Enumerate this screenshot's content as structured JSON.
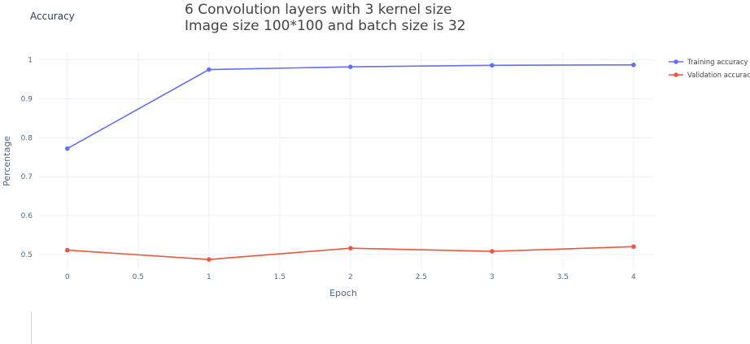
{
  "panel": {
    "corner_title": "Accuracy"
  },
  "chart_data": {
    "type": "line",
    "title_lines": [
      "6 Convolution layers with 3 kernel size",
      "Image size 100*100  and batch size is 32"
    ],
    "xlabel": "Epoch",
    "ylabel": "Percentage",
    "xlim": [
      -0.2,
      4.15
    ],
    "ylim": [
      0.46,
      1.02
    ],
    "x_ticks": [
      0,
      0.5,
      1,
      1.5,
      2,
      2.5,
      3,
      3.5,
      4
    ],
    "x_tick_labels": [
      "0",
      "0.5",
      "1",
      "1.5",
      "2",
      "2.5",
      "3",
      "3.5",
      "4"
    ],
    "y_ticks": [
      0.5,
      0.6,
      0.7,
      0.8,
      0.9,
      1
    ],
    "y_tick_labels": [
      "0.5",
      "0.6",
      "0.7",
      "0.8",
      "0.9",
      "1"
    ],
    "grid": true,
    "legend_position": "top-right",
    "x": [
      0,
      1,
      2,
      3,
      4
    ],
    "series": [
      {
        "name": "Training accuracy",
        "color": "#636efa",
        "values": [
          0.772,
          0.975,
          0.982,
          0.986,
          0.987
        ]
      },
      {
        "name": "Validation accuracy",
        "color": "#ef553b",
        "values": [
          0.511,
          0.487,
          0.516,
          0.508,
          0.52
        ]
      }
    ]
  }
}
